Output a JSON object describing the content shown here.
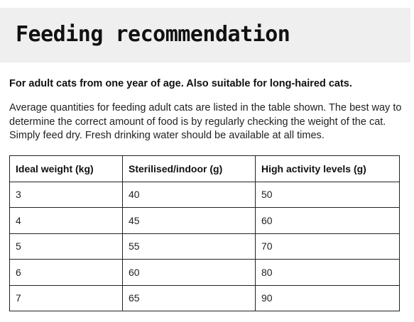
{
  "header": {
    "title": "Feeding recommendation"
  },
  "intro": {
    "bold": "For adult cats from one year of age. Also suitable for long-haired cats.",
    "text": "Average quantities for feeding adult cats are listed in the table shown. The best way to determine the correct amount of food is by regularly checking the weight of the cat. Simply feed dry. Fresh drinking water should be available at all times."
  },
  "table": {
    "headers": [
      "Ideal weight (kg)",
      "Sterilised/indoor (g)",
      "High activity levels (g)"
    ],
    "rows": [
      [
        "3",
        "40",
        "50"
      ],
      [
        "4",
        "45",
        "60"
      ],
      [
        "5",
        "55",
        "70"
      ],
      [
        "6",
        "60",
        "80"
      ],
      [
        "7",
        "65",
        "90"
      ]
    ]
  }
}
